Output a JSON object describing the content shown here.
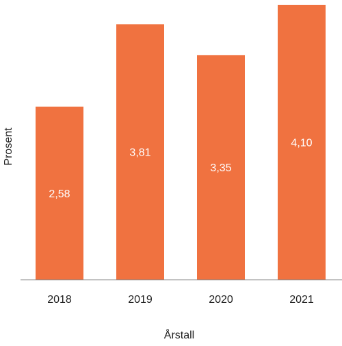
{
  "chart_data": {
    "type": "bar",
    "categories": [
      "2018",
      "2019",
      "2020",
      "2021"
    ],
    "values": [
      2.58,
      3.81,
      3.35,
      4.1
    ],
    "value_labels": [
      "2,58",
      "3,81",
      "3,35",
      "4,10"
    ],
    "xlabel": "Årstall",
    "ylabel": "Prosent",
    "ylim": [
      0,
      4.1
    ],
    "grid": false,
    "colors": {
      "bar": "#f07240",
      "axis": "#8a8a8a",
      "label_inside": "#ffffff",
      "text": "#222222"
    }
  }
}
